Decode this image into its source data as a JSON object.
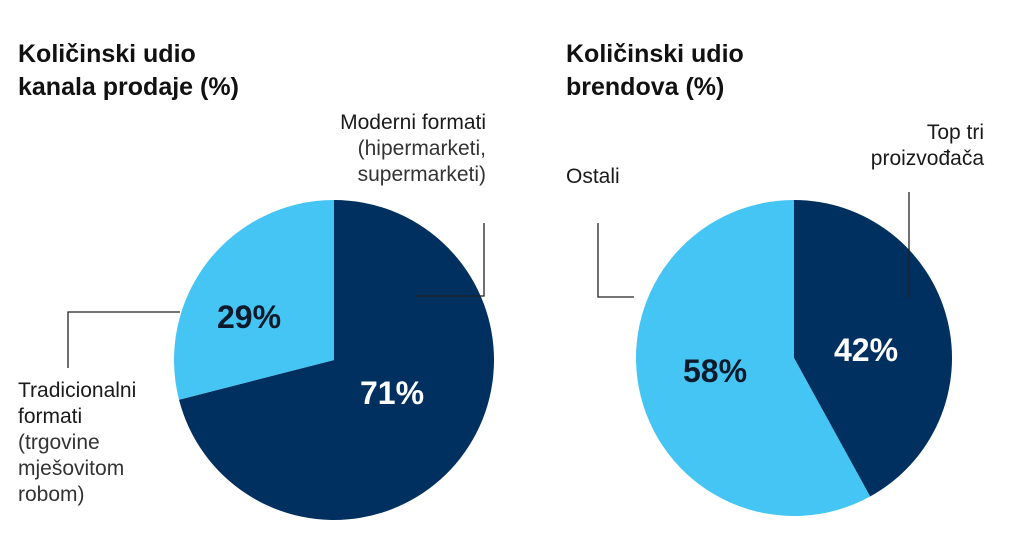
{
  "chart_data": [
    {
      "type": "pie",
      "title_lines": [
        "Količinski udio",
        "kanala prodaje (%)"
      ],
      "slices": [
        {
          "label_main": "Moderni formati",
          "label_sub_lines": [
            "(hipermarketi,",
            "supermarketi)"
          ],
          "value": 71,
          "value_label": "71%",
          "color": "#00305f"
        },
        {
          "label_main_lines": [
            "Tradicionalni",
            "formati"
          ],
          "label_sub_lines": [
            "(trgovine",
            "mješovitom",
            "robom)"
          ],
          "value": 29,
          "value_label": "29%",
          "color": "#45c5f3"
        }
      ]
    },
    {
      "type": "pie",
      "title_lines": [
        "Količinski udio",
        "brendova (%)"
      ],
      "slices": [
        {
          "label_main_lines": [
            "Top tri",
            "proizvođača"
          ],
          "value": 42,
          "value_label": "42%",
          "color": "#00305f"
        },
        {
          "label_main": "Ostali",
          "value": 58,
          "value_label": "58%",
          "color": "#45c5f3"
        }
      ]
    }
  ]
}
